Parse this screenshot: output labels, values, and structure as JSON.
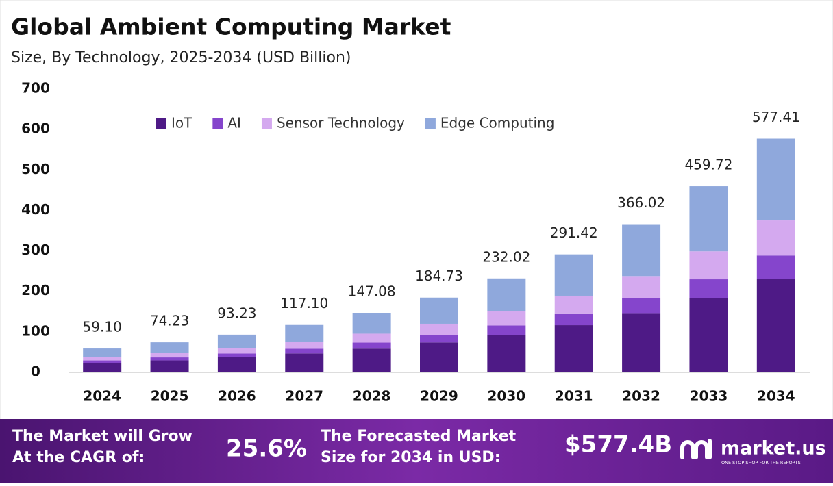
{
  "chart_data": {
    "type": "stacked-bar",
    "title": "Global Ambient Computing Market",
    "subtitle": "Size, By Technology, 2025-2034 (USD Billion)",
    "categories": [
      "2024",
      "2025",
      "2026",
      "2027",
      "2028",
      "2029",
      "2030",
      "2031",
      "2032",
      "2033",
      "2034"
    ],
    "series": [
      {
        "name": "IoT",
        "color": "#4e1a86",
        "values": [
          23.6,
          29.7,
          37.3,
          46.8,
          58.8,
          73.9,
          92.8,
          116.6,
          146.4,
          183.9,
          231.0
        ]
      },
      {
        "name": "AI",
        "color": "#8545cc",
        "values": [
          5.9,
          7.4,
          9.3,
          11.7,
          14.7,
          18.5,
          23.2,
          29.1,
          36.6,
          46.0,
          57.7
        ]
      },
      {
        "name": "Sensor Technology",
        "color": "#d4a9ef",
        "values": [
          8.9,
          11.1,
          14.0,
          17.6,
          22.1,
          27.7,
          34.8,
          43.7,
          54.9,
          69.0,
          86.6
        ]
      },
      {
        "name": "Edge Computing",
        "color": "#8fa8dc",
        "values": [
          20.7,
          26.0,
          32.6,
          41.0,
          51.5,
          64.6,
          81.2,
          102.0,
          128.1,
          160.9,
          202.1
        ]
      }
    ],
    "totals": {
      "values": [
        59.1,
        74.23,
        93.23,
        117.1,
        147.08,
        184.73,
        232.02,
        291.42,
        366.02,
        459.72,
        577.41
      ],
      "value_labels": [
        "59.10",
        "74.23",
        "93.23",
        "117.10",
        "147.08",
        "184.73",
        "232.02",
        "291.42",
        "366.02",
        "459.72",
        "577.41"
      ]
    },
    "ylim": [
      0,
      700
    ],
    "yticks": [
      0,
      100,
      200,
      300,
      400,
      500,
      600,
      700
    ],
    "legend": "top"
  },
  "footer": {
    "cagr_text": "The Market will Grow At the CAGR of:",
    "cagr_value": "25.6%",
    "forecast_text": "The Forecasted Market Size for 2034 in USD:",
    "forecast_value": "$577.4B",
    "brand": "market.us",
    "tagline": "ONE STOP SHOP FOR THE REPORTS"
  }
}
